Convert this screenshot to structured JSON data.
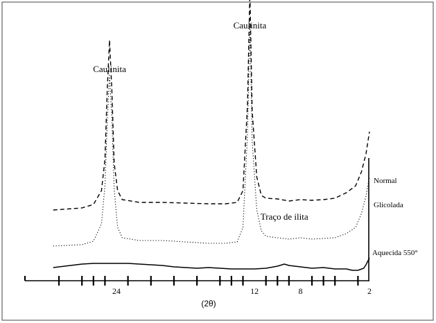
{
  "chart_data": {
    "type": "line",
    "xlabel": "(2θ)",
    "x_reversed": true,
    "xlim": [
      30,
      2
    ],
    "x_ticks": [
      29,
      27,
      26,
      25,
      23,
      21,
      19,
      17,
      15,
      14,
      13,
      11,
      10,
      9,
      7,
      6,
      5,
      3
    ],
    "x_tick_labels": [
      "24",
      "12",
      "8",
      "2"
    ],
    "annotations": [
      {
        "text": "Caulinita",
        "x": 24.6
      },
      {
        "text": "Caulinita",
        "x": 12.4
      },
      {
        "text": "Traço de ilita",
        "x": 9.4
      }
    ],
    "series": [
      {
        "name": "Normal",
        "style": "dashed",
        "color": "#000000",
        "x": [
          29.5,
          27,
          26,
          25.3,
          25,
          24.8,
          24.6,
          24.4,
          24.2,
          23.9,
          23.5,
          22,
          20,
          18,
          16,
          14.5,
          13.5,
          13.0,
          12.6,
          12.4,
          12.2,
          11.8,
          11.4,
          11,
          10,
          9,
          8,
          7,
          6,
          5,
          4,
          3.2,
          2.7,
          2.3,
          2.0
        ],
        "y": [
          27,
          30,
          35,
          55,
          100,
          200,
          272,
          200,
          95,
          55,
          42,
          38,
          38,
          37,
          36,
          36,
          38,
          55,
          180,
          342,
          170,
          75,
          48,
          44,
          43,
          40,
          42,
          41,
          42,
          44,
          52,
          62,
          82,
          108,
          140
        ]
      },
      {
        "name": "Glicolada",
        "style": "dotted",
        "color": "#000000",
        "x": [
          29.5,
          27,
          26,
          25.3,
          25,
          24.8,
          24.6,
          24.4,
          24.2,
          23.9,
          23.5,
          22,
          20,
          18,
          16,
          14.5,
          13.5,
          13.0,
          12.6,
          12.4,
          12.2,
          11.8,
          11.4,
          11,
          10,
          9,
          8,
          7,
          6,
          5,
          4,
          3.2,
          2.7,
          2.3,
          2.0
        ],
        "y": [
          8,
          10,
          15,
          40,
          95,
          185,
          256,
          190,
          90,
          35,
          20,
          16,
          16,
          14,
          12,
          12,
          14,
          35,
          170,
          330,
          160,
          60,
          30,
          22,
          20,
          18,
          20,
          18,
          19,
          20,
          26,
          35,
          55,
          80,
          108
        ]
      },
      {
        "name": "Aquecida 550°",
        "style": "solid",
        "color": "#000000",
        "x": [
          29.5,
          28,
          27,
          26,
          25,
          24,
          23,
          22,
          21,
          20,
          19,
          18,
          17,
          16,
          15,
          14,
          13,
          12,
          11,
          10,
          9.4,
          9,
          8,
          7,
          6,
          5,
          4,
          3.5,
          3,
          2.5,
          2.3,
          2.0
        ],
        "y": [
          -4,
          -1,
          1,
          2,
          2,
          2,
          2,
          1,
          0,
          -1,
          -3,
          -4,
          -5,
          -4,
          -5,
          -6,
          -6,
          -6,
          -5,
          -2,
          1,
          -1,
          -3,
          -5,
          -4,
          -6,
          -6,
          -8,
          -8,
          -5,
          0,
          10
        ]
      }
    ]
  }
}
